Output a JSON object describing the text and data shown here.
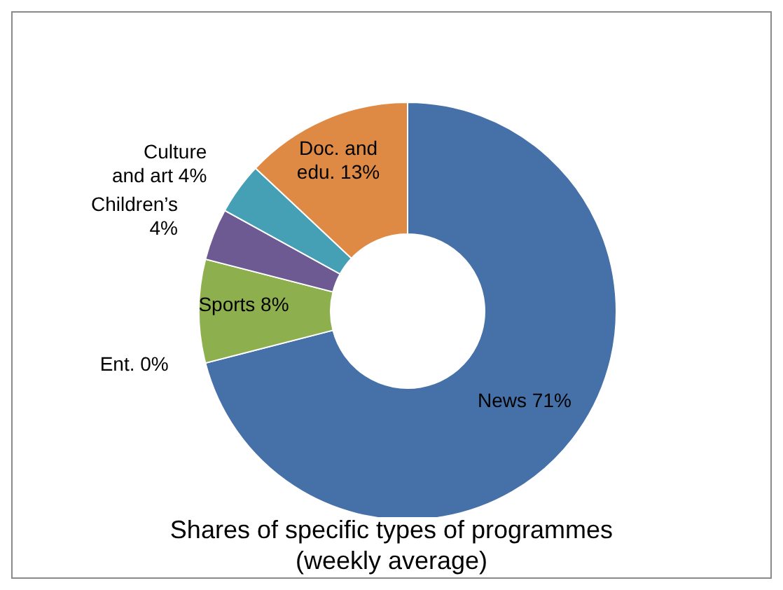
{
  "chart_data": {
    "type": "donut",
    "title": "Shares of specific types of programmes (weekly average)",
    "categories": [
      "News",
      "Ent.",
      "Sports",
      "Children’s",
      "Culture and art",
      "Doc. and edu."
    ],
    "values": [
      71,
      0,
      8,
      4,
      4,
      13
    ],
    "colors": [
      "#4671a8",
      "#b94a48",
      "#8daf4e",
      "#6d5a93",
      "#45a0b5",
      "#df8a44"
    ],
    "value_labels": [
      "71%",
      "0%",
      "8%",
      "4%",
      "4%",
      "13%"
    ],
    "legend": false
  }
}
